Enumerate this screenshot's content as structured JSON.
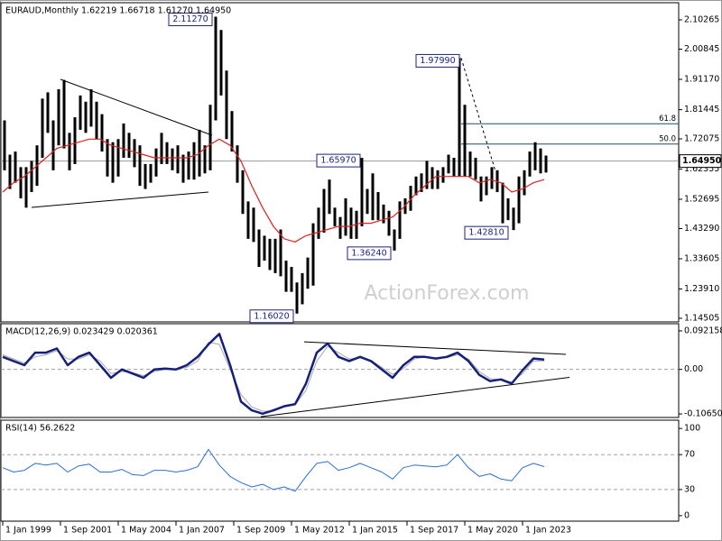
{
  "chart_data": [
    {
      "type": "ohlc",
      "title": "EURAUD,Monthly  1.62219 1.66718 1.61270 1.64950",
      "color": "#000000",
      "x": [
        "1999-01",
        "1999-04",
        "1999-07",
        "1999-10",
        "2000-01",
        "2000-04",
        "2000-07",
        "2000-10",
        "2001-01",
        "2001-04",
        "2001-07",
        "2001-10",
        "2002-01",
        "2002-04",
        "2002-07",
        "2002-10",
        "2003-01",
        "2003-04",
        "2003-07",
        "2003-10",
        "2004-01",
        "2004-04",
        "2004-07",
        "2004-10",
        "2005-01",
        "2005-04",
        "2005-07",
        "2005-10",
        "2006-01",
        "2006-04",
        "2006-07",
        "2006-10",
        "2007-01",
        "2007-04",
        "2007-07",
        "2007-10",
        "2008-01",
        "2008-04",
        "2008-07",
        "2008-10",
        "2009-01",
        "2009-04",
        "2009-07",
        "2009-10",
        "2010-01",
        "2010-04",
        "2010-07",
        "2010-10",
        "2011-01",
        "2011-04",
        "2011-07",
        "2011-10",
        "2012-01",
        "2012-04",
        "2012-07",
        "2012-10",
        "2013-01",
        "2013-04",
        "2013-07",
        "2013-10",
        "2014-01",
        "2014-04",
        "2014-07",
        "2014-10",
        "2015-01",
        "2015-04",
        "2015-07",
        "2015-10",
        "2016-01",
        "2016-04",
        "2016-07",
        "2016-10",
        "2017-01",
        "2017-04",
        "2017-07",
        "2017-10",
        "2018-01",
        "2018-04",
        "2018-07",
        "2018-10",
        "2019-01",
        "2019-04",
        "2019-07",
        "2019-10",
        "2020-01",
        "2020-04",
        "2020-07",
        "2020-10",
        "2021-01",
        "2021-04",
        "2021-07",
        "2021-10",
        "2022-01",
        "2022-04",
        "2022-07",
        "2022-10",
        "2023-01",
        "2023-04",
        "2023-07",
        "2023-10",
        "2024-01"
      ],
      "high": [
        1.78,
        1.67,
        1.68,
        1.63,
        1.63,
        1.65,
        1.7,
        1.85,
        1.87,
        1.78,
        1.88,
        1.91,
        1.74,
        1.79,
        1.86,
        1.84,
        1.88,
        1.84,
        1.8,
        1.72,
        1.71,
        1.72,
        1.77,
        1.74,
        1.72,
        1.7,
        1.64,
        1.64,
        1.69,
        1.74,
        1.71,
        1.69,
        1.7,
        1.67,
        1.68,
        1.71,
        1.75,
        1.7,
        1.83,
        2.1127,
        2.07,
        1.94,
        1.81,
        1.7,
        1.62,
        1.52,
        1.5,
        1.43,
        1.41,
        1.4,
        1.4,
        1.43,
        1.33,
        1.31,
        1.26,
        1.29,
        1.34,
        1.45,
        1.5,
        1.56,
        1.59,
        1.5,
        1.47,
        1.53,
        1.5,
        1.49,
        1.6597,
        1.56,
        1.61,
        1.55,
        1.51,
        1.49,
        1.43,
        1.52,
        1.53,
        1.57,
        1.6,
        1.61,
        1.65,
        1.63,
        1.62,
        1.63,
        1.67,
        1.66,
        1.9799,
        1.83,
        1.68,
        1.66,
        1.6,
        1.6,
        1.63,
        1.62,
        1.58,
        1.53,
        1.5,
        1.6,
        1.62,
        1.68,
        1.71,
        1.69,
        1.66718
      ],
      "low": [
        1.62,
        1.56,
        1.58,
        1.53,
        1.5,
        1.55,
        1.57,
        1.66,
        1.74,
        1.62,
        1.7,
        1.69,
        1.62,
        1.64,
        1.75,
        1.74,
        1.76,
        1.72,
        1.68,
        1.6,
        1.58,
        1.6,
        1.66,
        1.66,
        1.63,
        1.57,
        1.56,
        1.58,
        1.6,
        1.64,
        1.64,
        1.62,
        1.61,
        1.58,
        1.59,
        1.59,
        1.6,
        1.61,
        1.62,
        1.78,
        1.86,
        1.72,
        1.68,
        1.58,
        1.48,
        1.4,
        1.39,
        1.31,
        1.33,
        1.3,
        1.29,
        1.28,
        1.23,
        1.23,
        1.1602,
        1.19,
        1.24,
        1.25,
        1.4,
        1.42,
        1.48,
        1.44,
        1.4,
        1.41,
        1.4,
        1.4,
        1.44,
        1.48,
        1.46,
        1.46,
        1.45,
        1.41,
        1.3624,
        1.4,
        1.48,
        1.49,
        1.54,
        1.55,
        1.56,
        1.56,
        1.56,
        1.58,
        1.61,
        1.6,
        1.6,
        1.6,
        1.6,
        1.59,
        1.52,
        1.54,
        1.56,
        1.55,
        1.45,
        1.46,
        1.4281,
        1.45,
        1.54,
        1.6,
        1.62,
        1.61,
        1.6127
      ],
      "ma": {
        "color": "#e02020",
        "x": [
          "1999-01",
          "1999-07",
          "2000-01",
          "2000-07",
          "2001-01",
          "2001-07",
          "2002-01",
          "2002-07",
          "2003-01",
          "2003-07",
          "2004-01",
          "2004-07",
          "2005-01",
          "2005-07",
          "2006-01",
          "2006-07",
          "2007-01",
          "2007-07",
          "2008-01",
          "2008-07",
          "2009-01",
          "2009-07",
          "2010-01",
          "2010-07",
          "2011-01",
          "2011-07",
          "2012-01",
          "2012-07",
          "2013-01",
          "2013-07",
          "2014-01",
          "2014-07",
          "2015-01",
          "2015-07",
          "2016-01",
          "2016-07",
          "2017-01",
          "2017-07",
          "2018-01",
          "2018-07",
          "2019-01",
          "2019-07",
          "2020-01",
          "2020-07",
          "2021-01",
          "2021-07",
          "2022-01",
          "2022-07",
          "2023-01",
          "2023-07",
          "2024-01"
        ],
        "values": [
          1.55,
          1.58,
          1.6,
          1.63,
          1.66,
          1.69,
          1.7,
          1.71,
          1.72,
          1.72,
          1.7,
          1.69,
          1.68,
          1.67,
          1.66,
          1.66,
          1.66,
          1.66,
          1.67,
          1.7,
          1.72,
          1.7,
          1.65,
          1.57,
          1.5,
          1.44,
          1.4,
          1.39,
          1.41,
          1.42,
          1.43,
          1.44,
          1.44,
          1.45,
          1.45,
          1.46,
          1.47,
          1.5,
          1.54,
          1.57,
          1.6,
          1.6,
          1.6,
          1.6,
          1.58,
          1.59,
          1.58,
          1.55,
          1.56,
          1.58,
          1.59
        ]
      },
      "ylim": [
        1.1335,
        2.1576
      ],
      "yticks": [
        2.10265,
        2.00845,
        {
          "value": 1.9117,
          "label": "1.91170"
        },
        1.81445,
        1.72075,
        1.62355,
        1.52695,
        {
          "value": 1.4329,
          "label": "1.43290"
        },
        1.33605,
        {
          "value": 1.2391,
          "label": "1.23910"
        },
        1.14505
      ],
      "last_price": {
        "value": 1.6495,
        "label": "1.64950"
      },
      "annotations": [
        {
          "x": "2008-10",
          "value": 2.1127,
          "label": "2.11270"
        },
        {
          "x": "2020-03",
          "value": 1.9799,
          "label": "1.97990"
        },
        {
          "x": "2015-08",
          "value": 1.6597,
          "label": "1.65970"
        },
        {
          "x": "2017-01",
          "value": 1.3624,
          "label": "1.36240"
        },
        {
          "x": "2012-07",
          "value": 1.1602,
          "label": "1.16020"
        },
        {
          "x": "2022-06",
          "value": 1.4281,
          "label": "1.42810"
        }
      ],
      "fib_levels": [
        {
          "x": "2020-03",
          "value": 1.7691,
          "label": "61.8"
        },
        {
          "x": "2020-03",
          "value": 1.704,
          "label": "50.0"
        }
      ],
      "trendlines": [
        {
          "x": [
            "2001-09",
            "2008-09"
          ],
          "y": [
            1.9117,
            1.7323
          ],
          "dashed": false
        },
        {
          "x": [
            "2000-05",
            "2008-07"
          ],
          "y": [
            1.5009,
            1.5501
          ],
          "dashed": false
        },
        {
          "x": [
            "2020-03",
            "2021-10"
          ],
          "y": [
            1.9799,
            1.6166
          ],
          "dashed": true
        }
      ],
      "watermark": "ActionForex.com"
    },
    {
      "type": "line",
      "title": "MACD(12,26,9) 0.023429 0.020361",
      "x": [
        "1999-01",
        "1999-07",
        "2000-01",
        "2000-07",
        "2001-01",
        "2001-07",
        "2002-01",
        "2002-07",
        "2003-01",
        "2003-07",
        "2004-01",
        "2004-07",
        "2005-01",
        "2005-07",
        "2006-01",
        "2006-07",
        "2007-01",
        "2007-07",
        "2008-01",
        "2008-07",
        "2009-01",
        "2009-07",
        "2010-01",
        "2010-07",
        "2011-01",
        "2011-07",
        "2012-01",
        "2012-07",
        "2013-01",
        "2013-07",
        "2014-01",
        "2014-07",
        "2015-01",
        "2015-07",
        "2016-01",
        "2016-07",
        "2017-01",
        "2017-07",
        "2018-01",
        "2018-07",
        "2019-01",
        "2019-07",
        "2020-01",
        "2020-07",
        "2021-01",
        "2021-07",
        "2022-01",
        "2022-07",
        "2023-01",
        "2023-07",
        "2024-01"
      ],
      "series": [
        {
          "color": "#a8a8a8",
          "width": 1,
          "values": [
            0.035,
            0.025,
            0.015,
            0.03,
            0.035,
            0.045,
            0.025,
            0.025,
            0.035,
            0.02,
            -0.01,
            -0.005,
            -0.008,
            -0.015,
            -0.005,
            0,
            0,
            0.005,
            0.02,
            0.065,
            0.06,
            0.0,
            -0.06,
            -0.09,
            -0.1,
            -0.1,
            -0.09,
            -0.085,
            -0.05,
            0.02,
            0.055,
            0.04,
            0.025,
            0.028,
            0.022,
            0.005,
            -0.012,
            0.002,
            0.025,
            0.03,
            0.027,
            0.028,
            0.035,
            0.025,
            -0.005,
            -0.022,
            -0.025,
            -0.03,
            -0.01,
            0.02,
            0.020361
          ]
        },
        {
          "color": "#15207a",
          "width": 2.5,
          "values": [
            0.03,
            0.02,
            0.01,
            0.04,
            0.04,
            0.05,
            0.01,
            0.03,
            0.04,
            0.01,
            -0.02,
            0,
            -0.01,
            -0.02,
            0,
            0.002,
            0,
            0.01,
            0.03,
            0.06,
            0.085,
            0.01,
            -0.077,
            -0.098,
            -0.106,
            -0.098,
            -0.088,
            -0.083,
            -0.034,
            0.04,
            0.062,
            0.03,
            0.02,
            0.03,
            0.02,
            0,
            -0.02,
            0.01,
            0.03,
            0.03,
            0.026,
            0.03,
            0.04,
            0.02,
            -0.013,
            -0.028,
            -0.024,
            -0.034,
            -0.002,
            0.026,
            0.023429
          ]
        }
      ],
      "ylim": [
        -0.115,
        0.1093
      ],
      "yticks": [
        0.092158,
        {
          "value": 0,
          "label": "0.00"
        },
        -0.106503
      ],
      "levels": [
        0
      ],
      "trendlines": [
        {
          "x": [
            "2012-12",
            "2025-01"
          ],
          "y": [
            0.066,
            0.036
          ],
          "dashed": false
        },
        {
          "x": [
            "2010-12",
            "2025-03"
          ],
          "y": [
            -0.113,
            -0.019
          ],
          "dashed": false
        }
      ]
    },
    {
      "type": "line",
      "title": "RSI(14) 56.2622",
      "x": [
        "1999-01",
        "1999-07",
        "2000-01",
        "2000-07",
        "2001-01",
        "2001-07",
        "2002-01",
        "2002-07",
        "2003-01",
        "2003-07",
        "2004-01",
        "2004-07",
        "2005-01",
        "2005-07",
        "2006-01",
        "2006-07",
        "2007-01",
        "2007-07",
        "2008-01",
        "2008-07",
        "2009-01",
        "2009-07",
        "2010-01",
        "2010-07",
        "2011-01",
        "2011-07",
        "2012-01",
        "2012-07",
        "2013-01",
        "2013-07",
        "2014-01",
        "2014-07",
        "2015-01",
        "2015-07",
        "2016-01",
        "2016-07",
        "2017-01",
        "2017-07",
        "2018-01",
        "2018-07",
        "2019-01",
        "2019-07",
        "2020-01",
        "2020-07",
        "2021-01",
        "2021-07",
        "2022-01",
        "2022-07",
        "2023-01",
        "2023-07",
        "2024-01"
      ],
      "series": [
        {
          "color": "#2a6fd8",
          "width": 1,
          "values": [
            55,
            50,
            52,
            60,
            58,
            60,
            50,
            57,
            59,
            50,
            50,
            53,
            47,
            46,
            52,
            52,
            50,
            52,
            56,
            76,
            58,
            45,
            38,
            33,
            36,
            30,
            33,
            28,
            45,
            60,
            62,
            52,
            55,
            60,
            55,
            50,
            42,
            55,
            58,
            57,
            56,
            58,
            70,
            55,
            45,
            48,
            42,
            40,
            55,
            60,
            56.2622
          ]
        }
      ],
      "ylim": [
        -6.3,
        109.5
      ],
      "yticks": [
        100,
        70,
        30,
        0
      ],
      "levels": [
        70,
        30
      ],
      "xticks": [
        {
          "value": "1999-01",
          "label": "1 Jan 1999"
        },
        {
          "value": "2001-09",
          "label": "1 Sep 2001"
        },
        {
          "value": "2004-05",
          "label": "1 May 2004"
        },
        {
          "value": "2007-01",
          "label": "1 Jan 2007"
        },
        {
          "value": "2009-09",
          "label": "1 Sep 2009"
        },
        {
          "value": "2012-05",
          "label": "1 May 2012"
        },
        {
          "value": "2015-01",
          "label": "1 Jan 2015"
        },
        {
          "value": "2017-09",
          "label": "1 Sep 2017"
        },
        {
          "value": "2020-05",
          "label": "1 May 2020"
        },
        {
          "value": "2023-01",
          "label": "1 Jan 2023"
        }
      ]
    }
  ]
}
